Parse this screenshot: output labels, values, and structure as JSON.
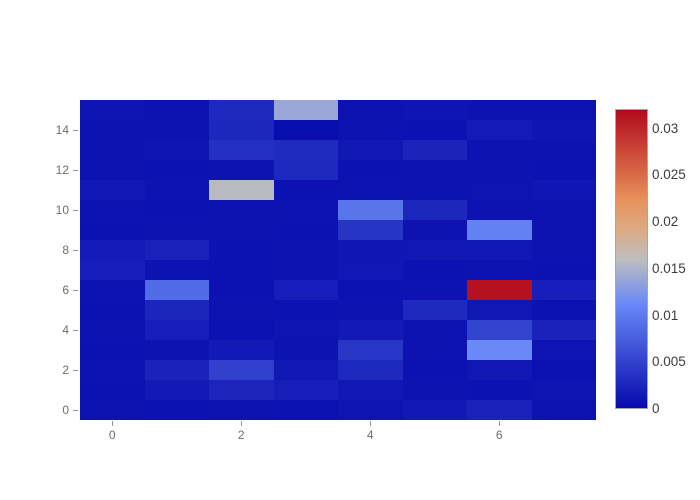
{
  "chart_data": {
    "type": "heatmap",
    "title": "",
    "xlabel": "",
    "ylabel": "",
    "grid": false,
    "n_cols": 8,
    "n_rows": 16,
    "axis_ranges": {
      "x": [
        -0.5,
        7.5
      ],
      "y": [
        -0.5,
        15.5
      ]
    },
    "x_tick_values": [
      0,
      2,
      4,
      6
    ],
    "x_tick_labels": [
      "0",
      "2",
      "4",
      "6"
    ],
    "y_tick_values": [
      0,
      2,
      4,
      6,
      8,
      10,
      12,
      14
    ],
    "y_tick_labels": [
      "0",
      "2",
      "4",
      "6",
      "8",
      "10",
      "12",
      "14"
    ],
    "zmin": 0,
    "zmax": 0.0321,
    "z_rows_bottom_to_top": [
      [
        0.0008,
        0.0006,
        0.0008,
        0.0007,
        0.0009,
        0.0013,
        0.0021,
        0.0008
      ],
      [
        0.0007,
        0.0014,
        0.0024,
        0.0018,
        0.0012,
        0.0008,
        0.0007,
        0.0009
      ],
      [
        0.0008,
        0.0022,
        0.0048,
        0.0013,
        0.0027,
        0.0007,
        0.0012,
        0.0006
      ],
      [
        0.0007,
        0.0008,
        0.0014,
        0.0008,
        0.0039,
        0.0008,
        0.0112,
        0.0009
      ],
      [
        0.0008,
        0.0018,
        0.0007,
        0.0009,
        0.0014,
        0.0008,
        0.005,
        0.0022
      ],
      [
        0.0007,
        0.0025,
        0.0008,
        0.0007,
        0.0008,
        0.0028,
        0.0012,
        0.0007
      ],
      [
        0.0008,
        0.0085,
        0.0007,
        0.0018,
        0.0007,
        0.0008,
        0.0316,
        0.0019
      ],
      [
        0.0018,
        0.0008,
        0.0007,
        0.0008,
        0.0012,
        0.0007,
        0.0008,
        0.0007
      ],
      [
        0.0016,
        0.0021,
        0.0007,
        0.0008,
        0.0011,
        0.0012,
        0.0012,
        0.0008
      ],
      [
        0.0007,
        0.0008,
        0.0008,
        0.0007,
        0.0038,
        0.0008,
        0.0105,
        0.0008
      ],
      [
        0.0008,
        0.0007,
        0.0008,
        0.0008,
        0.0094,
        0.0026,
        0.0008,
        0.0008
      ],
      [
        0.0012,
        0.0008,
        0.0157,
        0.0007,
        0.0008,
        0.0008,
        0.0009,
        0.0011
      ],
      [
        0.0008,
        0.0007,
        0.0008,
        0.0027,
        0.0007,
        0.0008,
        0.0008,
        0.0007
      ],
      [
        0.0008,
        0.001,
        0.0033,
        0.0029,
        0.0012,
        0.0023,
        0.0008,
        0.0008
      ],
      [
        0.0008,
        0.0008,
        0.0026,
        0.0003,
        0.0008,
        0.0007,
        0.0015,
        0.001
      ],
      [
        0.0009,
        0.0008,
        0.0028,
        0.014,
        0.0008,
        0.001,
        0.0008,
        0.0008
      ]
    ],
    "colorscale": [
      {
        "pos": 0.0,
        "color": [
          5,
          10,
          172
        ]
      },
      {
        "pos": 0.35,
        "color": [
          106,
          137,
          247
        ]
      },
      {
        "pos": 0.5,
        "color": [
          190,
          190,
          190
        ]
      },
      {
        "pos": 0.6,
        "color": [
          220,
          170,
          132
        ]
      },
      {
        "pos": 0.7,
        "color": [
          230,
          145,
          90
        ]
      },
      {
        "pos": 1.0,
        "color": [
          178,
          10,
          28
        ]
      }
    ],
    "legend": "colorbar-right",
    "colorbar": {
      "tick_values": [
        0,
        0.005,
        0.01,
        0.015,
        0.02,
        0.025,
        0.03
      ],
      "tick_labels": [
        "0",
        "0.005",
        "0.01",
        "0.015",
        "0.02",
        "0.025",
        "0.03"
      ]
    },
    "colors": {
      "min_color": "#050aac",
      "mid_color": "#bebebe",
      "max_color": "#b20a1c",
      "axis_label_color": "#6e6e6e",
      "colorbar_label_color": "#3d3d3d",
      "background": "#ffffff"
    }
  }
}
